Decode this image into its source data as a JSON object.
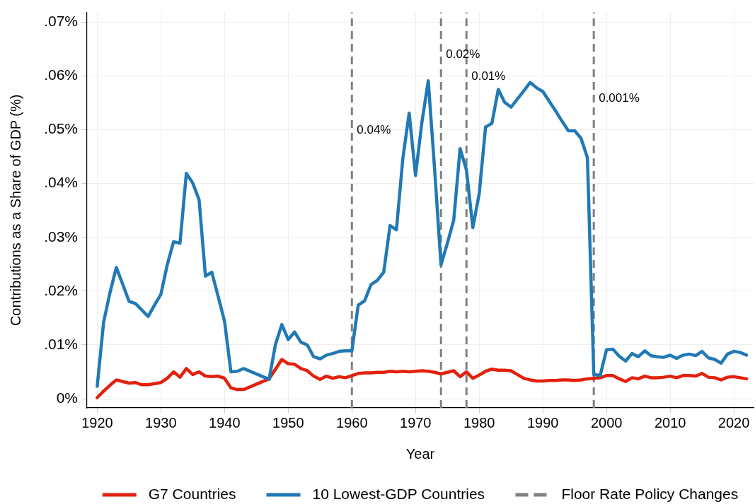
{
  "chart_data": {
    "type": "line",
    "xlabel": "Year",
    "ylabel": "Contributions as a Share of GDP (%)",
    "x": [
      1920,
      1921,
      1922,
      1923,
      1924,
      1925,
      1926,
      1927,
      1928,
      1929,
      1930,
      1931,
      1932,
      1933,
      1934,
      1935,
      1936,
      1937,
      1938,
      1939,
      1940,
      1941,
      1942,
      1943,
      1947,
      1948,
      1949,
      1950,
      1951,
      1952,
      1953,
      1954,
      1955,
      1956,
      1957,
      1958,
      1959,
      1960,
      1961,
      1962,
      1963,
      1964,
      1965,
      1966,
      1967,
      1968,
      1969,
      1970,
      1971,
      1972,
      1973,
      1974,
      1975,
      1976,
      1977,
      1978,
      1979,
      1980,
      1981,
      1982,
      1983,
      1984,
      1985,
      1986,
      1987,
      1988,
      1989,
      1990,
      1991,
      1992,
      1993,
      1994,
      1995,
      1996,
      1997,
      1998,
      1999,
      2000,
      2001,
      2002,
      2003,
      2004,
      2005,
      2006,
      2007,
      2008,
      2009,
      2010,
      2011,
      2012,
      2013,
      2014,
      2015,
      2016,
      2017,
      2018,
      2019,
      2020,
      2021,
      2022
    ],
    "series": [
      {
        "name": "G7 Countries",
        "color": "#e2200c",
        "values": [
          0.0002,
          0.0014,
          0.0025,
          0.0035,
          0.0032,
          0.0029,
          0.003,
          0.0026,
          0.0026,
          0.0028,
          0.003,
          0.0038,
          0.005,
          0.004,
          0.0056,
          0.0045,
          0.005,
          0.0042,
          0.0041,
          0.0042,
          0.0038,
          0.002,
          0.0017,
          0.0017,
          0.0037,
          0.0055,
          0.0073,
          0.0065,
          0.0064,
          0.0056,
          0.0052,
          0.0042,
          0.0036,
          0.0042,
          0.0038,
          0.0041,
          0.0039,
          0.0043,
          0.0047,
          0.0048,
          0.0048,
          0.0049,
          0.0049,
          0.0051,
          0.005,
          0.0051,
          0.005,
          0.0051,
          0.0052,
          0.0051,
          0.0049,
          0.0046,
          0.0049,
          0.0052,
          0.0041,
          0.005,
          0.0038,
          0.0044,
          0.0051,
          0.0055,
          0.0053,
          0.0053,
          0.0052,
          0.0045,
          0.0038,
          0.0035,
          0.0033,
          0.0033,
          0.0034,
          0.0034,
          0.0035,
          0.0035,
          0.0034,
          0.0035,
          0.0037,
          0.0038,
          0.0039,
          0.0043,
          0.0043,
          0.0037,
          0.0032,
          0.0039,
          0.0037,
          0.0042,
          0.0039,
          0.0039,
          0.004,
          0.0042,
          0.0039,
          0.0043,
          0.0043,
          0.0042,
          0.0047,
          0.004,
          0.0039,
          0.0035,
          0.004,
          0.0041,
          0.0039,
          0.0037
        ]
      },
      {
        "name": "10 Lowest-GDP Countries",
        "color": "#2179b5",
        "values": [
          0.0023,
          0.0142,
          0.0197,
          0.0244,
          0.0213,
          0.0181,
          0.0177,
          0.0165,
          0.0153,
          0.0174,
          0.0194,
          0.0249,
          0.0292,
          0.0289,
          0.0419,
          0.0401,
          0.037,
          0.0228,
          0.0235,
          0.019,
          0.0144,
          0.005,
          0.0051,
          0.0056,
          0.0036,
          0.0101,
          0.0138,
          0.011,
          0.0124,
          0.0105,
          0.01,
          0.0078,
          0.0074,
          0.0081,
          0.0084,
          0.0088,
          0.0089,
          0.0089,
          0.0174,
          0.0182,
          0.0212,
          0.022,
          0.0235,
          0.0322,
          0.0314,
          0.0446,
          0.0531,
          0.0415,
          0.0514,
          0.0591,
          0.0426,
          0.0249,
          0.0289,
          0.0332,
          0.0465,
          0.0425,
          0.0318,
          0.0381,
          0.0505,
          0.0512,
          0.0575,
          0.0551,
          0.0542,
          0.0557,
          0.0572,
          0.0588,
          0.0578,
          0.0571,
          0.0553,
          0.0535,
          0.0516,
          0.0498,
          0.0498,
          0.0484,
          0.0448,
          0.0045,
          0.0043,
          0.0091,
          0.0092,
          0.0079,
          0.007,
          0.0084,
          0.0078,
          0.0089,
          0.008,
          0.0078,
          0.0077,
          0.0081,
          0.0075,
          0.0081,
          0.0083,
          0.008,
          0.0088,
          0.0076,
          0.0073,
          0.0066,
          0.0083,
          0.0088,
          0.0086,
          0.0081
        ]
      }
    ],
    "xlim": [
      1918.4,
      2023.1
    ],
    "xticks": [
      1920,
      1930,
      1940,
      1950,
      1960,
      1970,
      1980,
      1990,
      2000,
      2010,
      2020
    ],
    "ylim": [
      -0.0017,
      0.0718
    ],
    "yticks": [
      {
        "value": 0,
        "label": "0%"
      },
      {
        "value": 0.01,
        "label": ".01%"
      },
      {
        "value": 0.02,
        "label": ".02%"
      },
      {
        "value": 0.03,
        "label": ".03%"
      },
      {
        "value": 0.04,
        "label": ".04%"
      },
      {
        "value": 0.05,
        "label": ".05%"
      },
      {
        "value": 0.06,
        "label": ".06%"
      },
      {
        "value": 0.07,
        "label": ".07%"
      }
    ],
    "ref_lines": [
      {
        "axis": "x",
        "value": 1960,
        "label": "Floor Rate Policy Changes",
        "color": "#808080",
        "line_style": "dashed"
      },
      {
        "axis": "x",
        "value": 1974,
        "color": "#808080",
        "line_style": "dashed"
      },
      {
        "axis": "x",
        "value": 1978,
        "color": "#808080",
        "line_style": "dashed"
      },
      {
        "axis": "x",
        "value": 1998,
        "color": "#808080",
        "line_style": "dashed"
      }
    ],
    "annotations": [
      {
        "text": "0.04%",
        "x": 1960,
        "y": 0.0499
      },
      {
        "text": "0.02%",
        "x": 1974,
        "y": 0.0639
      },
      {
        "text": "0.01%",
        "x": 1978,
        "y": 0.0599
      },
      {
        "text": "0.001%",
        "x": 1998,
        "y": 0.0558
      }
    ],
    "grid": true,
    "legend": "bottom"
  }
}
